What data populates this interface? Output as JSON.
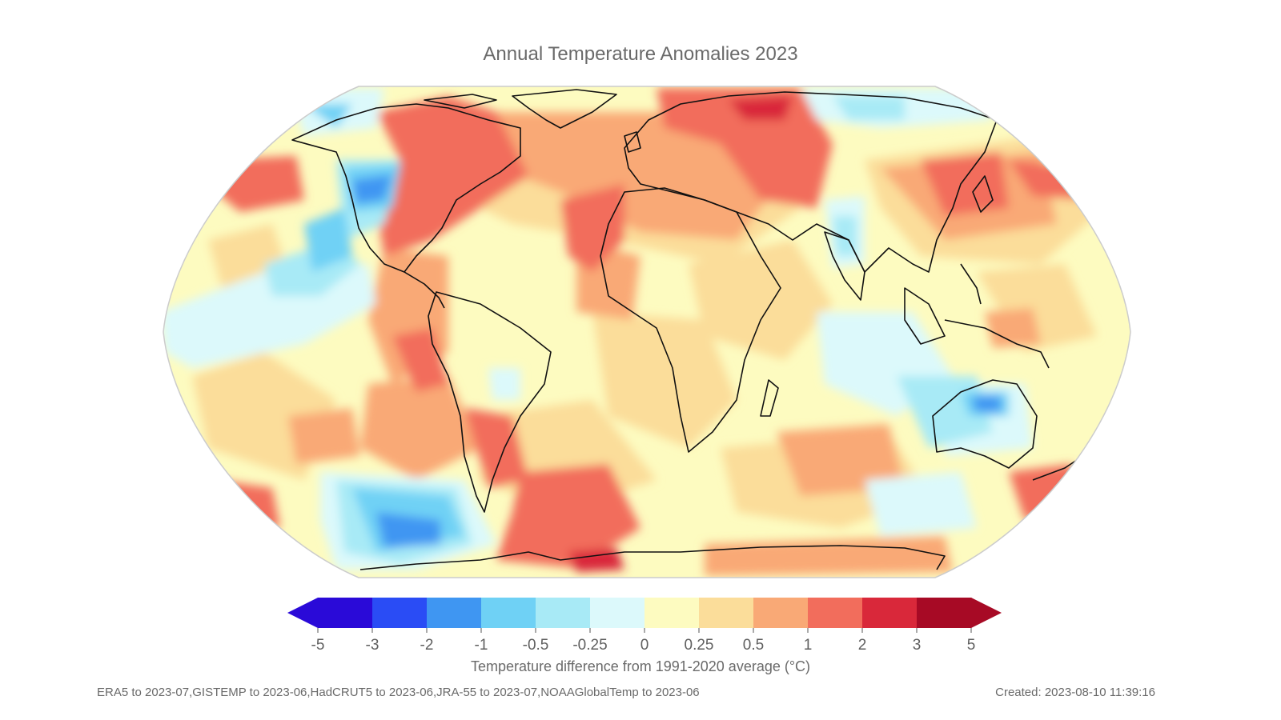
{
  "title": "Annual Temperature Anomalies 2023",
  "colorbar": {
    "label": "Temperature difference from 1991-2020 average (°C)",
    "ticks": [
      "-5",
      "-3",
      "-2",
      "-1",
      "-0.5",
      "-0.25",
      "0",
      "0.25",
      "0.5",
      "1",
      "2",
      "3",
      "5"
    ],
    "colors": [
      "#2a0ad8",
      "#2a4cf5",
      "#3f96f2",
      "#6fd1f5",
      "#a8eaf6",
      "#dcf9fb",
      "#fdfbc0",
      "#fbdd9a",
      "#f9a976",
      "#f26d5c",
      "#d9283a",
      "#a70a25"
    ],
    "under_color": "#2a0ad8",
    "over_color": "#a70a25"
  },
  "footer": {
    "sources": "ERA5 to 2023-07,GISTEMP to 2023-06,HadCRUT5 to 2023-06,JRA-55 to 2023-07,NOAAGlobalTemp to 2023-06",
    "created": "Created: 2023-08-10 11:39:16"
  },
  "map": {
    "projection": "Robinson",
    "variable": "annual temperature anomaly",
    "palette_ref": "colorbar.colors"
  }
}
